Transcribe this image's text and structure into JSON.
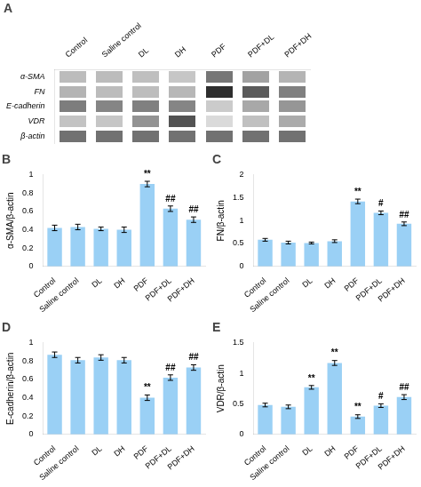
{
  "chart_data": [
    {
      "type": "heatmap",
      "title": "A",
      "categories": [
        "Control",
        "Saline control",
        "DL",
        "DH",
        "PDF",
        "PDF+DL",
        "PDF+DH"
      ],
      "series": [
        {
          "name": "α-SMA",
          "values": [
            0.45,
            0.45,
            0.43,
            0.38,
            0.92,
            0.62,
            0.5
          ]
        },
        {
          "name": "FN",
          "values": [
            0.5,
            0.45,
            0.44,
            0.48,
            1.4,
            1.1,
            0.85
          ]
        },
        {
          "name": "E-cadherin",
          "values": [
            0.87,
            0.82,
            0.85,
            0.82,
            0.35,
            0.58,
            0.7
          ]
        },
        {
          "name": "VDR",
          "values": [
            0.4,
            0.38,
            0.72,
            1.15,
            0.25,
            0.42,
            0.56
          ]
        },
        {
          "name": "β-actin",
          "values": [
            0.95,
            0.95,
            0.95,
            0.95,
            0.95,
            0.95,
            0.95
          ]
        }
      ],
      "grid": false
    },
    {
      "type": "bar",
      "title": "B",
      "categories": [
        "Control",
        "Saline control",
        "DL",
        "DH",
        "PDF",
        "PDF+DL",
        "PDF+DH"
      ],
      "values": [
        0.42,
        0.43,
        0.41,
        0.4,
        0.9,
        0.63,
        0.51
      ],
      "errors": [
        0.03,
        0.03,
        0.02,
        0.03,
        0.03,
        0.03,
        0.03
      ],
      "annotations": [
        {
          "category": "PDF",
          "text": "**"
        },
        {
          "category": "PDF+DL",
          "text": "##"
        },
        {
          "category": "PDF+DH",
          "text": "##"
        }
      ],
      "ylabel": "α-SMA/β-actin",
      "ylim": [
        0.0,
        1.0
      ],
      "yticks": [
        0,
        0.2,
        0.4,
        0.6,
        0.8,
        1
      ],
      "grid": false
    },
    {
      "type": "bar",
      "title": "C",
      "categories": [
        "Control",
        "Saline control",
        "DL",
        "DH",
        "PDF",
        "PDF+DL",
        "PDF+DH"
      ],
      "values": [
        0.58,
        0.52,
        0.51,
        0.55,
        1.42,
        1.17,
        0.93
      ],
      "errors": [
        0.03,
        0.03,
        0.02,
        0.03,
        0.05,
        0.04,
        0.04
      ],
      "annotations": [
        {
          "category": "PDF",
          "text": "**"
        },
        {
          "category": "PDF+DL",
          "text": "#"
        },
        {
          "category": "PDF+DH",
          "text": "##"
        }
      ],
      "ylabel": "FN/β-actin",
      "ylim": [
        0.0,
        2.0
      ],
      "yticks": [
        0,
        0.5,
        1,
        1.5,
        2
      ],
      "grid": false
    },
    {
      "type": "bar",
      "title": "D",
      "categories": [
        "Control",
        "Saline control",
        "DL",
        "DH",
        "PDF",
        "PDF+DL",
        "PDF+DH"
      ],
      "values": [
        0.87,
        0.81,
        0.84,
        0.81,
        0.4,
        0.62,
        0.73
      ],
      "errors": [
        0.03,
        0.03,
        0.03,
        0.03,
        0.03,
        0.03,
        0.03
      ],
      "annotations": [
        {
          "category": "PDF",
          "text": "**"
        },
        {
          "category": "PDF+DL",
          "text": "##"
        },
        {
          "category": "PDF+DH",
          "text": "##"
        }
      ],
      "ylabel": "E-cadherin/β-actin",
      "ylim": [
        0.0,
        1.0
      ],
      "yticks": [
        0,
        0.2,
        0.4,
        0.6,
        0.8,
        1
      ],
      "grid": false
    },
    {
      "type": "bar",
      "title": "E",
      "categories": [
        "Control",
        "Saline control",
        "DL",
        "DH",
        "PDF",
        "PDF+DL",
        "PDF+DH"
      ],
      "values": [
        0.48,
        0.45,
        0.77,
        1.17,
        0.29,
        0.47,
        0.61
      ],
      "errors": [
        0.03,
        0.03,
        0.03,
        0.04,
        0.03,
        0.03,
        0.04
      ],
      "annotations": [
        {
          "category": "DL",
          "text": "**"
        },
        {
          "category": "DH",
          "text": "**"
        },
        {
          "category": "PDF",
          "text": "**"
        },
        {
          "category": "PDF+DL",
          "text": "#"
        },
        {
          "category": "PDF+DH",
          "text": "##"
        }
      ],
      "ylabel": "VDR/β-actin",
      "ylim": [
        0.0,
        1.5
      ],
      "yticks": [
        0,
        0.5,
        1,
        1.5
      ],
      "grid": false
    }
  ]
}
